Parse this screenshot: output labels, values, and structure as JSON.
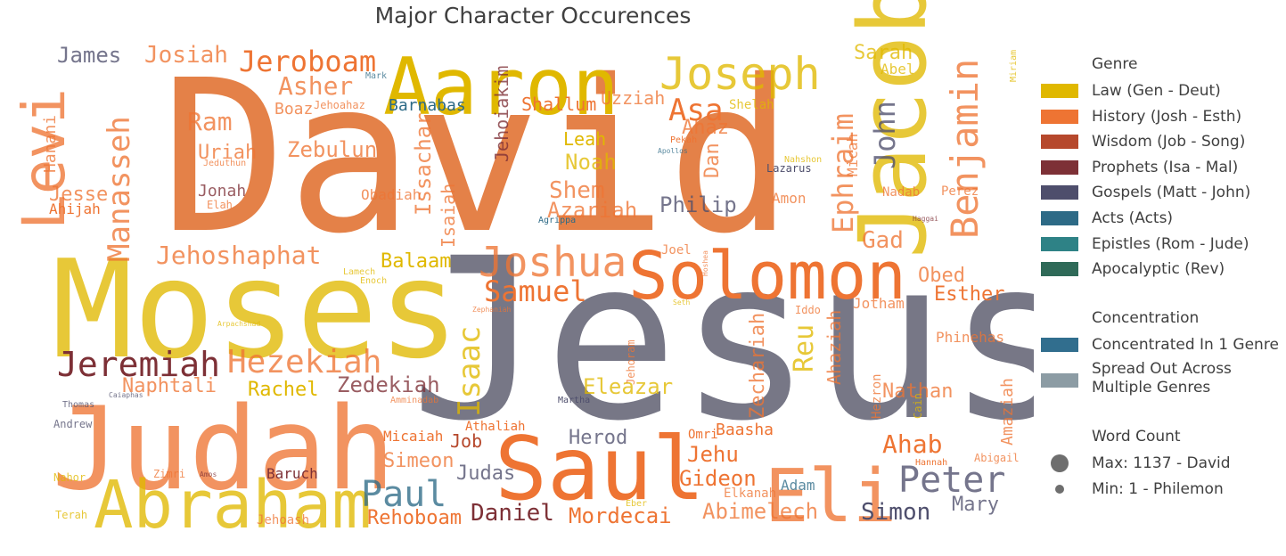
{
  "chart_data": {
    "type": "wordcloud",
    "title": "Major Character Occurences",
    "genre_colors": {
      "Law": "#e0b800",
      "History": "#ee7433",
      "Wisdom": "#b6482c",
      "Prophets": "#7d3036",
      "Gospels": "#4e4e6c",
      "Acts": "#2d6a86",
      "Epistles": "#2e8286",
      "Apocalyptic": "#2f6a58"
    },
    "concentration_colors": {
      "concentrated": "#316e8e",
      "spread": "#8c9ca4"
    },
    "words": [
      {
        "text": "David",
        "genre": "History",
        "spread": true
      },
      {
        "text": "Jesus",
        "genre": "Gospels",
        "spread": true
      },
      {
        "text": "Moses",
        "genre": "Law",
        "spread": true
      },
      {
        "text": "Judah",
        "genre": "History",
        "spread": true
      },
      {
        "text": "Saul",
        "genre": "History",
        "spread": false
      },
      {
        "text": "Aaron",
        "genre": "Law",
        "spread": false
      },
      {
        "text": "Abraham",
        "genre": "Law",
        "spread": true
      },
      {
        "text": "Jacob",
        "genre": "Law",
        "spread": true
      },
      {
        "text": "Solomon",
        "genre": "History",
        "spread": false
      },
      {
        "text": "Joseph",
        "genre": "Law",
        "spread": true
      },
      {
        "text": "Levi",
        "genre": "History",
        "spread": true
      },
      {
        "text": "Eli",
        "genre": "History",
        "spread": true
      },
      {
        "text": "Joshua",
        "genre": "History",
        "spread": true
      },
      {
        "text": "Benjamin",
        "genre": "History",
        "spread": true
      },
      {
        "text": "Jeremiah",
        "genre": "Prophets",
        "spread": false
      },
      {
        "text": "Hezekiah",
        "genre": "History",
        "spread": true
      },
      {
        "text": "Jeroboam",
        "genre": "History",
        "spread": false
      },
      {
        "text": "Manasseh",
        "genre": "History",
        "spread": true
      },
      {
        "text": "Paul",
        "genre": "Acts",
        "spread": true
      },
      {
        "text": "Peter",
        "genre": "Gospels",
        "spread": true
      },
      {
        "text": "Samuel",
        "genre": "History",
        "spread": false
      },
      {
        "text": "Isaac",
        "genre": "Law",
        "spread": true
      },
      {
        "text": "Ephraim",
        "genre": "History",
        "spread": true
      },
      {
        "text": "John",
        "genre": "Gospels",
        "spread": true
      },
      {
        "text": "Asa",
        "genre": "History",
        "spread": false
      },
      {
        "text": "Jehoshaphat",
        "genre": "History",
        "spread": true
      },
      {
        "text": "Asher",
        "genre": "History",
        "spread": true
      },
      {
        "text": "Josiah",
        "genre": "History",
        "spread": true
      },
      {
        "text": "Zebulun",
        "genre": "History",
        "spread": true
      },
      {
        "text": "Ram",
        "genre": "History",
        "spread": true
      },
      {
        "text": "Uriah",
        "genre": "History",
        "spread": true
      },
      {
        "text": "James",
        "genre": "Gospels",
        "spread": true
      },
      {
        "text": "Hanani",
        "genre": "History",
        "spread": true
      },
      {
        "text": "Jesse",
        "genre": "History",
        "spread": true
      },
      {
        "text": "Ahijah",
        "genre": "History",
        "spread": false
      },
      {
        "text": "Jonah",
        "genre": "Prophets",
        "spread": true
      },
      {
        "text": "Elah",
        "genre": "History",
        "spread": true
      },
      {
        "text": "Boaz",
        "genre": "History",
        "spread": true
      },
      {
        "text": "Jehoahaz",
        "genre": "History",
        "spread": true
      },
      {
        "text": "Barnabas",
        "genre": "Acts",
        "spread": false
      },
      {
        "text": "Jehoiakim",
        "genre": "Prophets",
        "spread": true
      },
      {
        "text": "Issachar",
        "genre": "History",
        "spread": true
      },
      {
        "text": "Isaiah",
        "genre": "History",
        "spread": true
      },
      {
        "text": "Obadiah",
        "genre": "History",
        "spread": true
      },
      {
        "text": "Shallum",
        "genre": "History",
        "spread": false
      },
      {
        "text": "Uzziah",
        "genre": "History",
        "spread": true
      },
      {
        "text": "Leah",
        "genre": "Law",
        "spread": false
      },
      {
        "text": "Noah",
        "genre": "Law",
        "spread": true
      },
      {
        "text": "Shem",
        "genre": "History",
        "spread": true
      },
      {
        "text": "Azariah",
        "genre": "History",
        "spread": true
      },
      {
        "text": "Ahaz",
        "genre": "History",
        "spread": true
      },
      {
        "text": "Dan",
        "genre": "History",
        "spread": true
      },
      {
        "text": "Philip",
        "genre": "Gospels",
        "spread": true
      },
      {
        "text": "Amon",
        "genre": "History",
        "spread": true
      },
      {
        "text": "Shelah",
        "genre": "Law",
        "spread": true
      },
      {
        "text": "Micah",
        "genre": "History",
        "spread": true
      },
      {
        "text": "Sarah",
        "genre": "Law",
        "spread": true
      },
      {
        "text": "Abel",
        "genre": "Law",
        "spread": true
      },
      {
        "text": "Gad",
        "genre": "History",
        "spread": true
      },
      {
        "text": "Nadab",
        "genre": "History",
        "spread": true
      },
      {
        "text": "Perez",
        "genre": "History",
        "spread": true
      },
      {
        "text": "Obed",
        "genre": "History",
        "spread": true
      },
      {
        "text": "Esther",
        "genre": "History",
        "spread": false
      },
      {
        "text": "Jotham",
        "genre": "History",
        "spread": true
      },
      {
        "text": "Reu",
        "genre": "Law",
        "spread": true
      },
      {
        "text": "Ahaziah",
        "genre": "History",
        "spread": true
      },
      {
        "text": "Zechariah",
        "genre": "History",
        "spread": true
      },
      {
        "text": "Phinehas",
        "genre": "History",
        "spread": true
      },
      {
        "text": "Nathan",
        "genre": "History",
        "spread": true
      },
      {
        "text": "Amaziah",
        "genre": "History",
        "spread": true
      },
      {
        "text": "Hezron",
        "genre": "History",
        "spread": true
      },
      {
        "text": "Cain",
        "genre": "Law",
        "spread": true
      },
      {
        "text": "Ahab",
        "genre": "History",
        "spread": false
      },
      {
        "text": "Abigail",
        "genre": "History",
        "spread": true
      },
      {
        "text": "Naphtali",
        "genre": "History",
        "spread": true
      },
      {
        "text": "Rachel",
        "genre": "Law",
        "spread": false
      },
      {
        "text": "Zedekiah",
        "genre": "Prophets",
        "spread": true
      },
      {
        "text": "Eleazar",
        "genre": "Law",
        "spread": true
      },
      {
        "text": "Balaam",
        "genre": "Law",
        "spread": false
      },
      {
        "text": "Micaiah",
        "genre": "History",
        "spread": false
      },
      {
        "text": "Athaliah",
        "genre": "History",
        "spread": false
      },
      {
        "text": "Simeon",
        "genre": "History",
        "spread": true
      },
      {
        "text": "Job",
        "genre": "Wisdom",
        "spread": false
      },
      {
        "text": "Judas",
        "genre": "Gospels",
        "spread": true
      },
      {
        "text": "Herod",
        "genre": "Gospels",
        "spread": true
      },
      {
        "text": "Jehu",
        "genre": "History",
        "spread": false
      },
      {
        "text": "Gideon",
        "genre": "History",
        "spread": false
      },
      {
        "text": "Baasha",
        "genre": "History",
        "spread": false
      },
      {
        "text": "Elkanah",
        "genre": "History",
        "spread": true
      },
      {
        "text": "Adam",
        "genre": "Acts",
        "spread": true
      },
      {
        "text": "Daniel",
        "genre": "Prophets",
        "spread": false
      },
      {
        "text": "Rehoboam",
        "genre": "History",
        "spread": false
      },
      {
        "text": "Mordecai",
        "genre": "History",
        "spread": false
      },
      {
        "text": "Abimelech",
        "genre": "History",
        "spread": true
      },
      {
        "text": "Simon",
        "genre": "Gospels",
        "spread": false
      },
      {
        "text": "Mary",
        "genre": "Gospels",
        "spread": true
      },
      {
        "text": "Baruch",
        "genre": "Prophets",
        "spread": false
      },
      {
        "text": "Jehoash",
        "genre": "History",
        "spread": true
      },
      {
        "text": "Zimri",
        "genre": "History",
        "spread": true
      },
      {
        "text": "Amos",
        "genre": "Prophets",
        "spread": true
      },
      {
        "text": "Nahor",
        "genre": "Law",
        "spread": true
      },
      {
        "text": "Terah",
        "genre": "Law",
        "spread": true
      },
      {
        "text": "Thomas",
        "genre": "Gospels",
        "spread": true
      },
      {
        "text": "Andrew",
        "genre": "Gospels",
        "spread": true
      },
      {
        "text": "Omri",
        "genre": "History",
        "spread": false
      },
      {
        "text": "Eber",
        "genre": "Law",
        "spread": true
      },
      {
        "text": "Joel",
        "genre": "History",
        "spread": true
      },
      {
        "text": "Jehoram",
        "genre": "History",
        "spread": true
      },
      {
        "text": "Hoshea",
        "genre": "History",
        "spread": true
      },
      {
        "text": "Iddo",
        "genre": "History",
        "spread": true
      },
      {
        "text": "Martha",
        "genre": "Gospels",
        "spread": false
      },
      {
        "text": "Lazarus",
        "genre": "Gospels",
        "spread": false
      },
      {
        "text": "Nahshon",
        "genre": "Law",
        "spread": true
      },
      {
        "text": "Pekah",
        "genre": "History",
        "spread": false
      },
      {
        "text": "Apollos",
        "genre": "Acts",
        "spread": true
      },
      {
        "text": "Agrippa",
        "genre": "Acts",
        "spread": false
      },
      {
        "text": "Haggai",
        "genre": "Prophets",
        "spread": true
      },
      {
        "text": "Lamech",
        "genre": "Law",
        "spread": true
      },
      {
        "text": "Enoch",
        "genre": "Law",
        "spread": true
      },
      {
        "text": "Mark",
        "genre": "Acts",
        "spread": true
      },
      {
        "text": "Jeduthun",
        "genre": "History",
        "spread": true
      },
      {
        "text": "Amminadab",
        "genre": "History",
        "spread": true
      },
      {
        "text": "Caiaphas",
        "genre": "Gospels",
        "spread": true
      },
      {
        "text": "Hannah",
        "genre": "History",
        "spread": false
      },
      {
        "text": "Miriam",
        "genre": "Law",
        "spread": true
      },
      {
        "text": "Arpachshad",
        "genre": "Law",
        "spread": true
      },
      {
        "text": "Zephaniah",
        "genre": "History",
        "spread": true
      },
      {
        "text": "Seth",
        "genre": "Law",
        "spread": true
      }
    ],
    "legend": {
      "genre_title": "Genre",
      "genres": [
        {
          "label": "Law (Gen - Deut)",
          "color": "#e0b800"
        },
        {
          "label": "History (Josh - Esth)",
          "color": "#ee7433"
        },
        {
          "label": "Wisdom (Job - Song)",
          "color": "#b6482c"
        },
        {
          "label": "Prophets (Isa - Mal)",
          "color": "#7d3036"
        },
        {
          "label": "Gospels (Matt - John)",
          "color": "#4e4e6c"
        },
        {
          "label": "Acts (Acts)",
          "color": "#2d6a86"
        },
        {
          "label": "Epistles (Rom - Jude)",
          "color": "#2e8286"
        },
        {
          "label": "Apocalyptic (Rev)",
          "color": "#2f6a58"
        }
      ],
      "concentration_title": "Concentration",
      "concentration": [
        {
          "label": "Concentrated In 1 Genre",
          "color": "#316e8e"
        },
        {
          "label": "Spread Out Across Multiple Genres",
          "color": "#8c9ca4"
        }
      ],
      "wordcount_title": "Word Count",
      "wordcount": [
        {
          "label": "Max: 1137 - David",
          "kind": "max"
        },
        {
          "label": "Min: 1 - Philemon",
          "kind": "min"
        }
      ]
    }
  }
}
